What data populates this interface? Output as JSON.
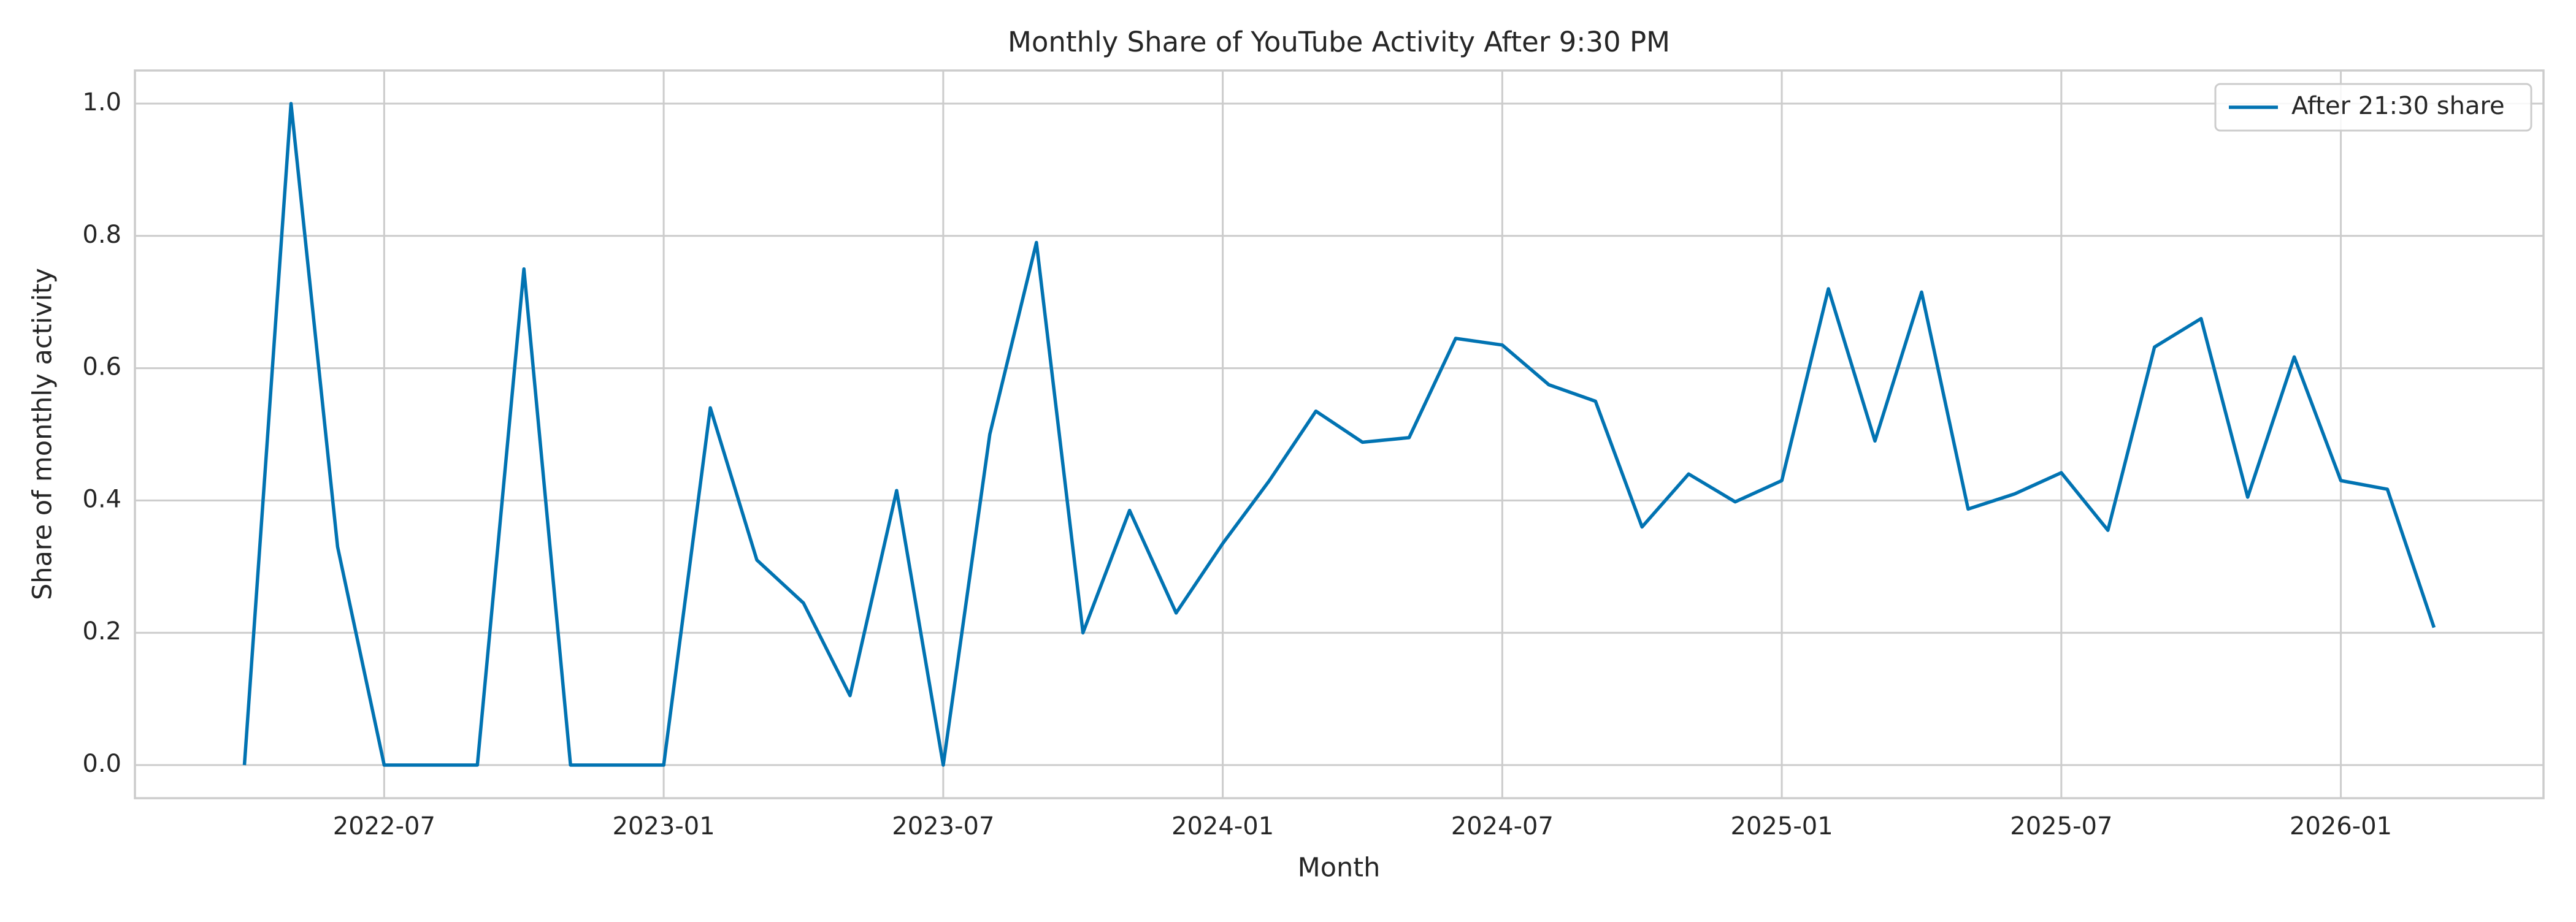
{
  "chart_data": {
    "type": "line",
    "title": "Monthly Share of YouTube Activity After 9:30 PM",
    "xlabel": "Month",
    "ylabel": "Share of monthly activity",
    "x": [
      "2022-04",
      "2022-05",
      "2022-06",
      "2022-07",
      "2022-08",
      "2022-09",
      "2022-10",
      "2022-11",
      "2022-12",
      "2023-01",
      "2023-02",
      "2023-03",
      "2023-04",
      "2023-05",
      "2023-06",
      "2023-07",
      "2023-08",
      "2023-09",
      "2023-10",
      "2023-11",
      "2023-12",
      "2024-01",
      "2024-02",
      "2024-03",
      "2024-04",
      "2024-05",
      "2024-06",
      "2024-07",
      "2024-08",
      "2024-09",
      "2024-10",
      "2024-11",
      "2024-12",
      "2025-01",
      "2025-02",
      "2025-03",
      "2025-04",
      "2025-05",
      "2025-06",
      "2025-07",
      "2025-08",
      "2025-09",
      "2025-10",
      "2025-11",
      "2025-12",
      "2026-01",
      "2026-02",
      "2026-03"
    ],
    "series": [
      {
        "name": "After 21:30 share",
        "color": "#0173b2",
        "values": [
          0,
          1.0,
          0.33,
          0,
          0,
          0,
          0.75,
          0,
          0,
          0,
          0.54,
          0.31,
          0.245,
          0.105,
          0.415,
          0,
          0.5,
          0.79,
          0.2,
          0.385,
          0.23,
          0.335,
          0.43,
          0.535,
          0.488,
          0.495,
          0.645,
          0.635,
          0.575,
          0.55,
          0.36,
          0.44,
          0.398,
          0.43,
          0.72,
          0.49,
          0.715,
          0.387,
          0.41,
          0.442,
          0.355,
          0.632,
          0.675,
          0.405,
          0.617,
          0.43,
          0.417,
          0.208
        ]
      }
    ],
    "xticks": [
      "2022-07",
      "2023-01",
      "2023-07",
      "2024-01",
      "2024-07",
      "2025-01",
      "2025-07",
      "2026-01"
    ],
    "ylim": [
      -0.05,
      1.05
    ],
    "yticks": [
      {
        "value": 0,
        "label": "0.0"
      },
      {
        "value": 0.2,
        "label": "0.2"
      },
      {
        "value": 0.4,
        "label": "0.4"
      },
      {
        "value": 0.6,
        "label": "0.6"
      },
      {
        "value": 0.8,
        "label": "0.8"
      },
      {
        "value": 1,
        "label": "1.0"
      }
    ],
    "grid": true,
    "legend": "upper right"
  }
}
